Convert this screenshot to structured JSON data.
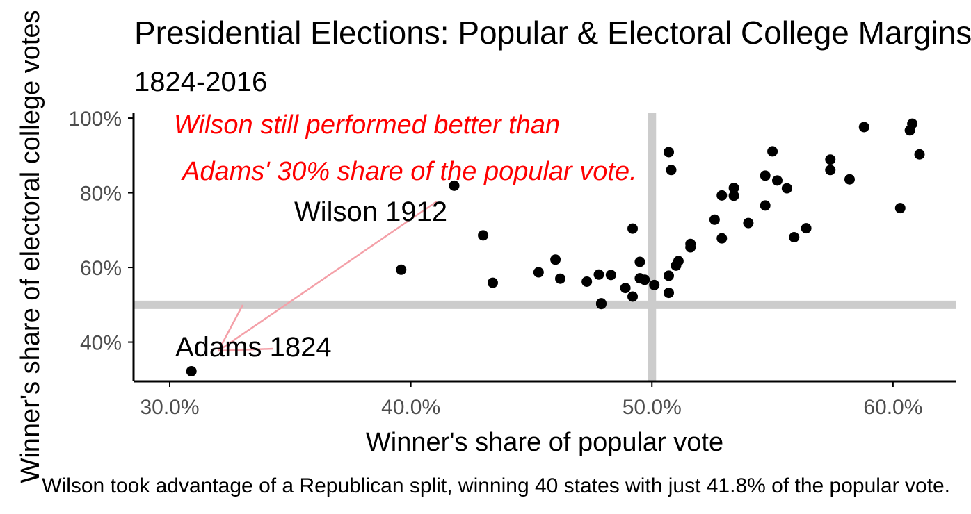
{
  "chart_data": {
    "type": "scatter",
    "title": "Presidential Elections: Popular & Electoral College Margins",
    "subtitle": "1824-2016",
    "xlabel": "Winner's share of popular vote",
    "ylabel": "Winner's share of electoral college votes",
    "caption": "Wilson took advantage of a Republican split, winning 40 states with just 41.8% of the popular vote.",
    "xlim": [
      28.5,
      62.6
    ],
    "ylim": [
      29.5,
      101.5
    ],
    "x_ticks": [
      30,
      40,
      50,
      60
    ],
    "x_tick_labels": [
      "30.0%",
      "40.0%",
      "50.0%",
      "60.0%"
    ],
    "y_ticks": [
      40,
      60,
      80,
      100
    ],
    "y_tick_labels": [
      "40%",
      "60%",
      "80%",
      "100%"
    ],
    "reference_lines": {
      "x": 50,
      "y": 50,
      "color": "#cccccc"
    },
    "grid": false,
    "points": [
      {
        "x": 30.9,
        "y": 32.2
      },
      {
        "x": 39.6,
        "y": 59.4
      },
      {
        "x": 41.8,
        "y": 81.9
      },
      {
        "x": 43.0,
        "y": 68.6
      },
      {
        "x": 43.4,
        "y": 55.9
      },
      {
        "x": 45.3,
        "y": 58.7
      },
      {
        "x": 46.0,
        "y": 62.1
      },
      {
        "x": 46.2,
        "y": 57.0
      },
      {
        "x": 47.3,
        "y": 56.2
      },
      {
        "x": 47.8,
        "y": 58.1
      },
      {
        "x": 47.9,
        "y": 50.4
      },
      {
        "x": 47.9,
        "y": 50.2
      },
      {
        "x": 48.3,
        "y": 58.0
      },
      {
        "x": 48.9,
        "y": 54.5
      },
      {
        "x": 49.2,
        "y": 52.2
      },
      {
        "x": 49.2,
        "y": 70.4
      },
      {
        "x": 49.5,
        "y": 61.5
      },
      {
        "x": 49.5,
        "y": 57.1
      },
      {
        "x": 49.7,
        "y": 56.7
      },
      {
        "x": 50.1,
        "y": 55.3
      },
      {
        "x": 50.7,
        "y": 53.2
      },
      {
        "x": 50.7,
        "y": 57.8
      },
      {
        "x": 50.7,
        "y": 90.9
      },
      {
        "x": 50.8,
        "y": 86.1
      },
      {
        "x": 51.0,
        "y": 60.5
      },
      {
        "x": 51.1,
        "y": 61.7
      },
      {
        "x": 51.6,
        "y": 66.3
      },
      {
        "x": 51.6,
        "y": 65.4
      },
      {
        "x": 52.6,
        "y": 72.8
      },
      {
        "x": 52.9,
        "y": 79.3
      },
      {
        "x": 52.9,
        "y": 67.8
      },
      {
        "x": 53.4,
        "y": 81.3
      },
      {
        "x": 53.4,
        "y": 79.2
      },
      {
        "x": 54.0,
        "y": 71.9
      },
      {
        "x": 54.7,
        "y": 76.6
      },
      {
        "x": 54.7,
        "y": 84.6
      },
      {
        "x": 55.0,
        "y": 91.1
      },
      {
        "x": 55.2,
        "y": 83.3
      },
      {
        "x": 55.6,
        "y": 81.2
      },
      {
        "x": 55.9,
        "y": 68.1
      },
      {
        "x": 56.4,
        "y": 70.5
      },
      {
        "x": 57.4,
        "y": 88.9
      },
      {
        "x": 57.4,
        "y": 86.1
      },
      {
        "x": 58.2,
        "y": 83.6
      },
      {
        "x": 58.8,
        "y": 97.6
      },
      {
        "x": 60.3,
        "y": 75.9
      },
      {
        "x": 60.7,
        "y": 96.7
      },
      {
        "x": 60.8,
        "y": 98.5
      },
      {
        "x": 61.1,
        "y": 90.3
      }
    ],
    "annotations": [
      {
        "text": "Wilson 1912",
        "x": 41.8,
        "y": 81.9,
        "color": "#000000"
      },
      {
        "text": "Adams 1824",
        "x": 30.9,
        "y": 32.2,
        "color": "#000000"
      },
      {
        "text": "Wilson still performed better than",
        "color": "#ff0000"
      },
      {
        "text": "Adams' 30% share of the popular vote.",
        "color": "#ff0000"
      }
    ],
    "colors": {
      "points": "#000000",
      "note": "#ff0000",
      "arrow": "#f4a0a8",
      "axis": "#000000",
      "tick_labels": "#4d4d4d"
    }
  }
}
